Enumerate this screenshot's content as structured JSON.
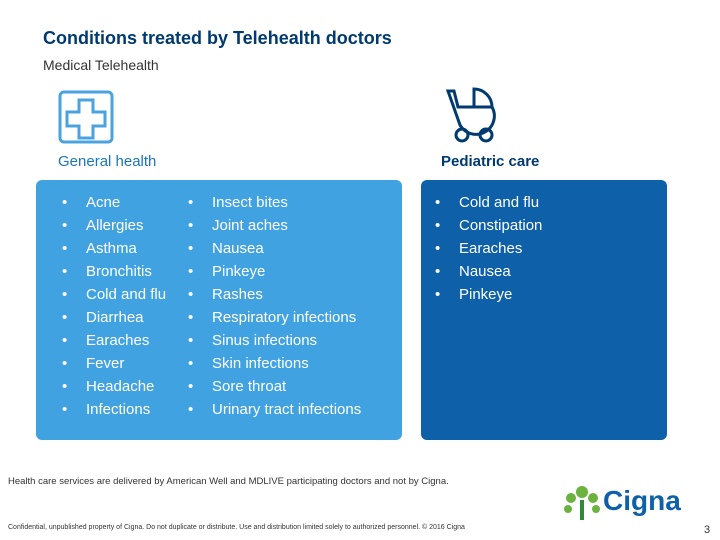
{
  "header": {
    "title": "Conditions treated by Telehealth doctors",
    "subtitle": "Medical Telehealth"
  },
  "general": {
    "title": "General health",
    "col1": [
      "Acne",
      "Allergies",
      "Asthma",
      "Bronchitis",
      "Cold and flu",
      "Diarrhea",
      "Earaches",
      "Fever",
      "Headache",
      "Infections"
    ],
    "col2": [
      "Insect bites",
      "Joint aches",
      "Nausea",
      "Pinkeye",
      "Rashes",
      "Respiratory infections",
      "Sinus infections",
      "Skin infections",
      "Sore throat",
      "Urinary tract infections"
    ]
  },
  "pediatric": {
    "title": "Pediatric care",
    "items": [
      "Cold and flu",
      "Constipation",
      "Earaches",
      "Nausea",
      "Pinkeye"
    ]
  },
  "footer": {
    "note": "Health care services are delivered by American Well and MDLIVE participating doctors and not by Cigna.",
    "legal": "Confidential, unpublished property of Cigna. Do not duplicate or distribute. Use and distribution limited solely to authorized personnel. © 2016 Cigna",
    "logo": "Cigna",
    "page": "3"
  }
}
